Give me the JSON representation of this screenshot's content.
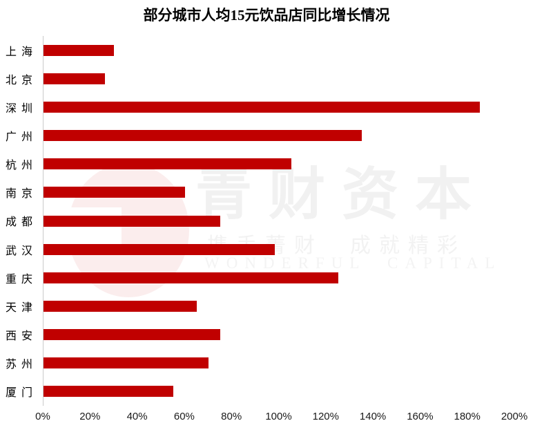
{
  "chart_data": {
    "type": "bar",
    "orientation": "horizontal",
    "title": "部分城市人均15元饮品店同比增长情况",
    "categories": [
      "上海",
      "北京",
      "深圳",
      "广州",
      "杭州",
      "南京",
      "成都",
      "武汉",
      "重庆",
      "天津",
      "西安",
      "苏州",
      "厦门"
    ],
    "values": [
      30,
      26,
      185,
      135,
      105,
      60,
      75,
      98,
      125,
      65,
      75,
      70,
      55
    ],
    "value_unit": "%",
    "xlabel": "",
    "ylabel": "",
    "xlim": [
      0,
      200
    ],
    "x_ticks": [
      "0%",
      "20%",
      "40%",
      "60%",
      "80%",
      "100%",
      "120%",
      "140%",
      "160%",
      "180%",
      "200%"
    ],
    "bar_color": "#C00000",
    "grid": false,
    "legend": false
  },
  "watermark": {
    "brand": "青财资本",
    "tagline": "携手菁财  成就精彩",
    "english": "WONDERFUL  CAPITAL",
    "logo": "wonderful-capital-logo",
    "text_color": "#f2f2f2"
  }
}
